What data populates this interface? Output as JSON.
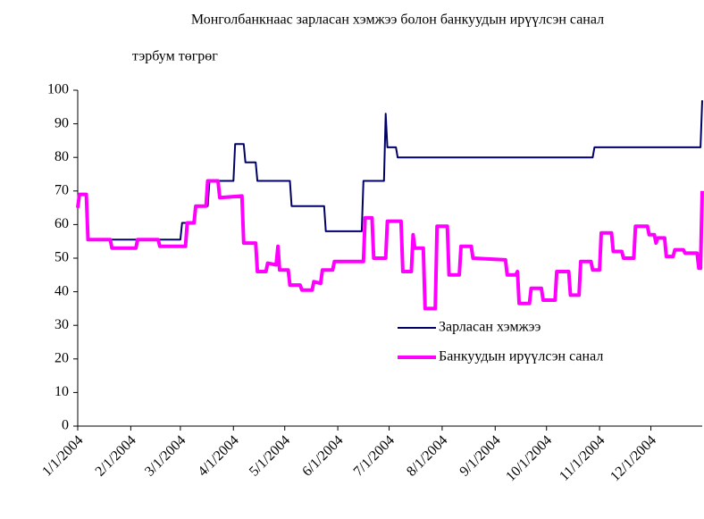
{
  "chart_data": {
    "type": "line",
    "title": "Монголбанкнаас зарласан хэмжээ болон банкуудын ирүүлсэн санал",
    "subtitle": "тэрбум  төгрөг",
    "xlim": [
      "1/1/2004",
      "12/31/2004"
    ],
    "xticks": [
      "1/1/2004",
      "2/1/2004",
      "3/1/2004",
      "4/1/2004",
      "5/1/2004",
      "6/1/2004",
      "7/1/2004",
      "8/1/2004",
      "9/1/2004",
      "10/1/2004",
      "11/1/2004",
      "12/1/2004"
    ],
    "ylim": [
      0,
      100
    ],
    "yticks": [
      0,
      10,
      20,
      30,
      40,
      50,
      60,
      70,
      80,
      90,
      100
    ],
    "grid": false,
    "legend": "right",
    "series": [
      {
        "name": "Зарласан хэмжээ",
        "color": "#000066",
        "width": 2,
        "x": [
          "1/6/2004",
          "3/1/2004",
          "3/2/2004",
          "3/9/2004",
          "3/10/2004",
          "3/17/2004",
          "3/18/2004",
          "4/1/2004",
          "4/2/2004",
          "4/7/2004",
          "4/8/2004",
          "4/14/2004",
          "4/15/2004",
          "5/4/2004",
          "5/5/2004",
          "5/24/2004",
          "5/25/2004",
          "6/15/2004",
          "6/16/2004",
          "6/28/2004",
          "6/29/2004",
          "6/30/2004",
          "7/5/2004",
          "7/6/2004",
          "10/28/2004",
          "10/29/2004",
          "12/30/2004",
          "12/31/2004"
        ],
        "values": [
          55.5,
          55.5,
          60.5,
          60.5,
          65.5,
          65.5,
          73,
          73,
          84,
          84,
          78.5,
          78.5,
          73,
          73,
          65.5,
          65.5,
          58,
          58,
          73,
          73,
          93,
          83,
          83,
          80,
          80,
          83,
          83,
          97
        ]
      },
      {
        "name": "Банкуудын ирүүлсэн санал",
        "color": "#ff00ff",
        "width": 4,
        "x": [
          "1/1/2004",
          "1/2/2004",
          "1/6/2004",
          "1/7/2004",
          "1/20/2004",
          "1/21/2004",
          "2/4/2004",
          "2/5/2004",
          "2/17/2004",
          "2/18/2004",
          "3/4/2004",
          "3/5/2004",
          "3/9/2004",
          "3/10/2004",
          "3/16/2004",
          "3/17/2004",
          "3/23/2004",
          "3/24/2004",
          "4/6/2004",
          "4/7/2004",
          "4/14/2004",
          "4/15/2004",
          "4/20/2004",
          "4/21/2004",
          "4/26/2004",
          "4/27/2004",
          "4/28/2004",
          "5/3/2004",
          "5/4/2004",
          "5/10/2004",
          "5/11/2004",
          "5/17/2004",
          "5/18/2004",
          "5/22/2004",
          "5/23/2004",
          "5/29/2004",
          "5/30/2004",
          "6/16/2004",
          "6/17/2004",
          "6/21/2004",
          "6/22/2004",
          "6/29/2004",
          "6/30/2004",
          "7/8/2004",
          "7/9/2004",
          "7/14/2004",
          "7/15/2004",
          "7/16/2004",
          "7/21/2004",
          "7/22/2004",
          "7/28/2004",
          "7/29/2004",
          "8/4/2004",
          "8/5/2004",
          "8/11/2004",
          "8/12/2004",
          "8/18/2004",
          "8/19/2004",
          "9/7/2004",
          "9/8/2004",
          "9/13/2004",
          "9/14/2004",
          "9/15/2004",
          "9/21/2004",
          "9/22/2004",
          "9/28/2004",
          "9/29/2004",
          "10/6/2004",
          "10/7/2004",
          "10/14/2004",
          "10/15/2004",
          "10/20/2004",
          "10/21/2004",
          "10/27/2004",
          "10/28/2004",
          "11/1/2004",
          "11/2/2004",
          "11/8/2004",
          "11/9/2004",
          "11/14/2004",
          "11/15/2004",
          "11/21/2004",
          "11/22/2004",
          "11/29/2004",
          "11/30/2004",
          "12/3/2004",
          "12/4/2004",
          "12/5/2004",
          "12/9/2004",
          "12/10/2004",
          "12/14/2004",
          "12/15/2004",
          "12/20/2004",
          "12/21/2004",
          "12/28/2004",
          "12/29/2004",
          "12/30/2004",
          "12/31/2004"
        ],
        "values": [
          65,
          69,
          69,
          55.5,
          55.5,
          53,
          53,
          55.5,
          55.5,
          53.5,
          53.5,
          60.5,
          60.5,
          65.5,
          65.5,
          73,
          73,
          68,
          68.5,
          54.5,
          54.5,
          46,
          46,
          48.5,
          48,
          53.5,
          46.5,
          46.5,
          42,
          42,
          40.5,
          40.5,
          43,
          42.5,
          46.5,
          46.5,
          49,
          49,
          62,
          62,
          50,
          50,
          61,
          61,
          46,
          46,
          57,
          53,
          53,
          35,
          35,
          59.5,
          59.5,
          45,
          45,
          53.5,
          53.5,
          50,
          49.5,
          45,
          45,
          46,
          36.5,
          36.5,
          41,
          41,
          37.5,
          37.5,
          46,
          46,
          39,
          39,
          49,
          49,
          46.5,
          46.5,
          57.5,
          57.5,
          52,
          52,
          50,
          50,
          59.5,
          59.5,
          57,
          57,
          54.5,
          56,
          56,
          50.5,
          50.5,
          52.5,
          52.5,
          51.5,
          51.5,
          47,
          47,
          70
        ]
      }
    ]
  }
}
